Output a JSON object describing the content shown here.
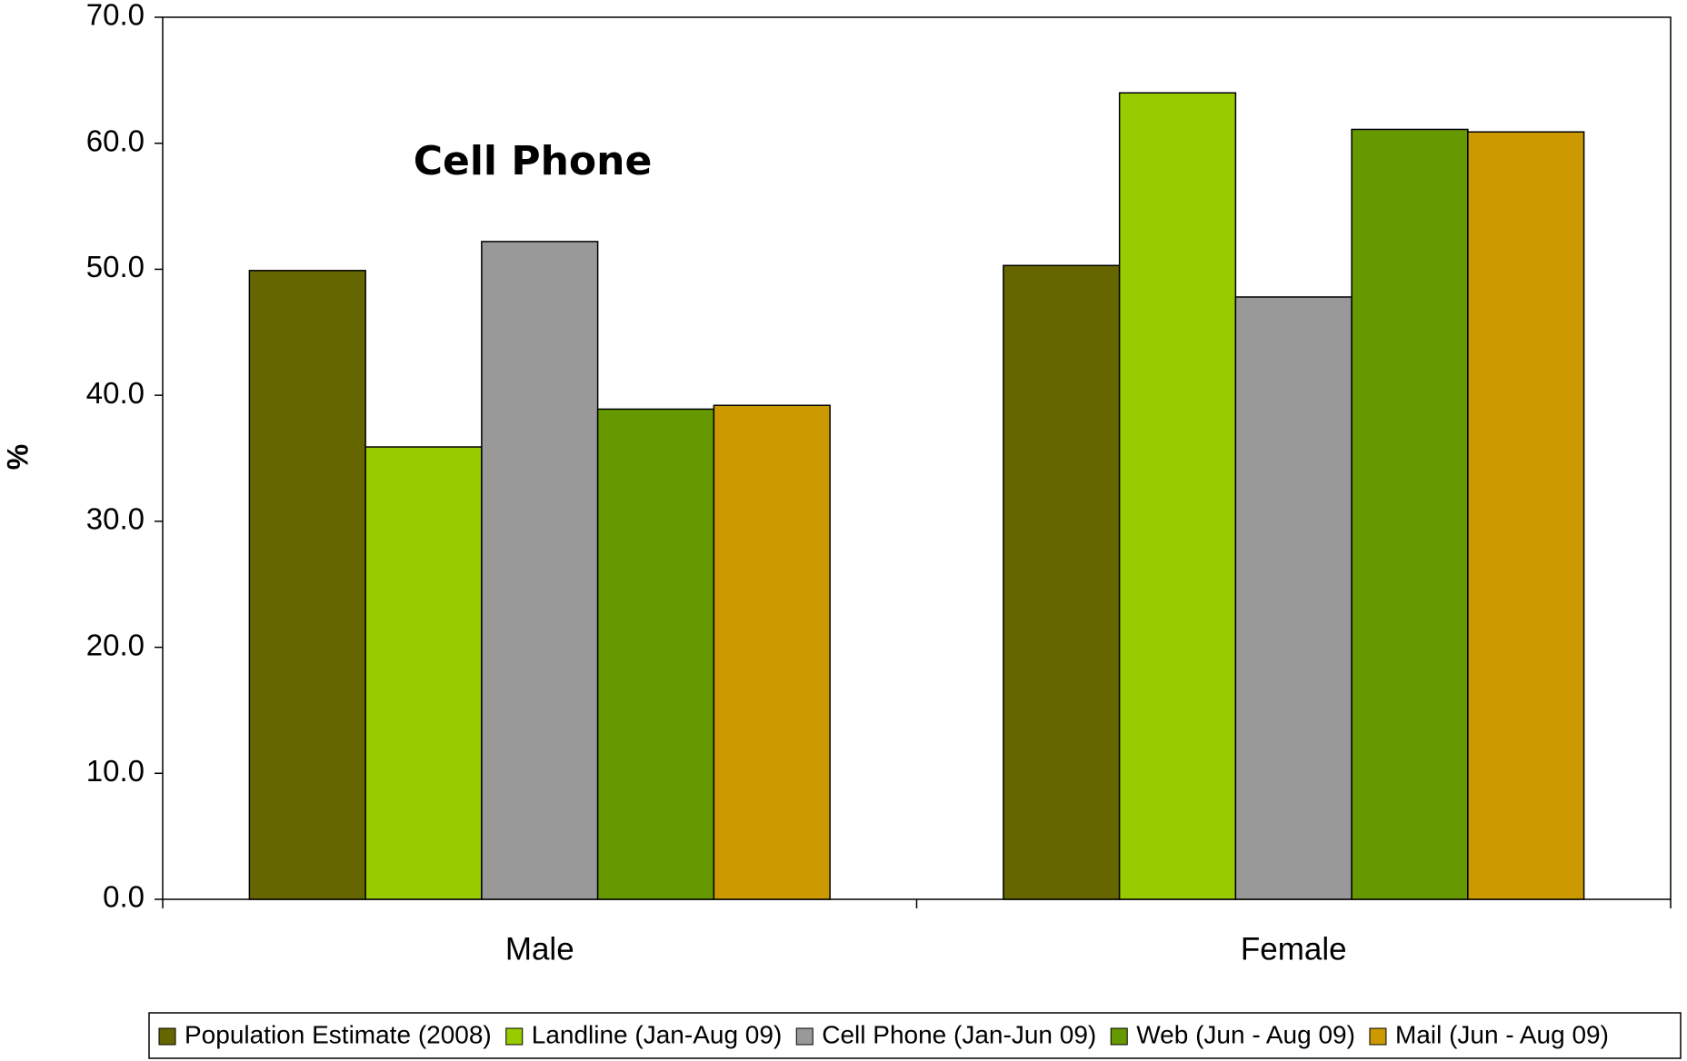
{
  "chart_data": {
    "type": "bar",
    "annotation": "Cell Phone",
    "y_label": "%",
    "categories": [
      "Male",
      "Female"
    ],
    "series": [
      {
        "name": "Population Estimate (2008)",
        "color": "#666600",
        "values": [
          49.9,
          50.3
        ]
      },
      {
        "name": "Landline (Jan-Aug 09)",
        "color": "#99cc00",
        "values": [
          35.9,
          64.0
        ]
      },
      {
        "name": "Cell Phone (Jan-Jun 09)",
        "color": "#999999",
        "values": [
          52.2,
          47.8
        ]
      },
      {
        "name": "Web (Jun - Aug 09)",
        "color": "#669900",
        "values": [
          38.9,
          61.1
        ]
      },
      {
        "name": "Mail (Jun - Aug 09)",
        "color": "#cc9900",
        "values": [
          39.2,
          60.9
        ]
      }
    ],
    "ylim": [
      0,
      70
    ],
    "yticks": [
      {
        "value": 0,
        "label": "0.0"
      },
      {
        "value": 10,
        "label": "10.0"
      },
      {
        "value": 20,
        "label": "20.0"
      },
      {
        "value": 30,
        "label": "30.0"
      },
      {
        "value": 40,
        "label": "40.0"
      },
      {
        "value": 50,
        "label": "50.0"
      },
      {
        "value": 60,
        "label": "60.0"
      },
      {
        "value": 70,
        "label": "70.0"
      }
    ],
    "legend": "bottom"
  }
}
